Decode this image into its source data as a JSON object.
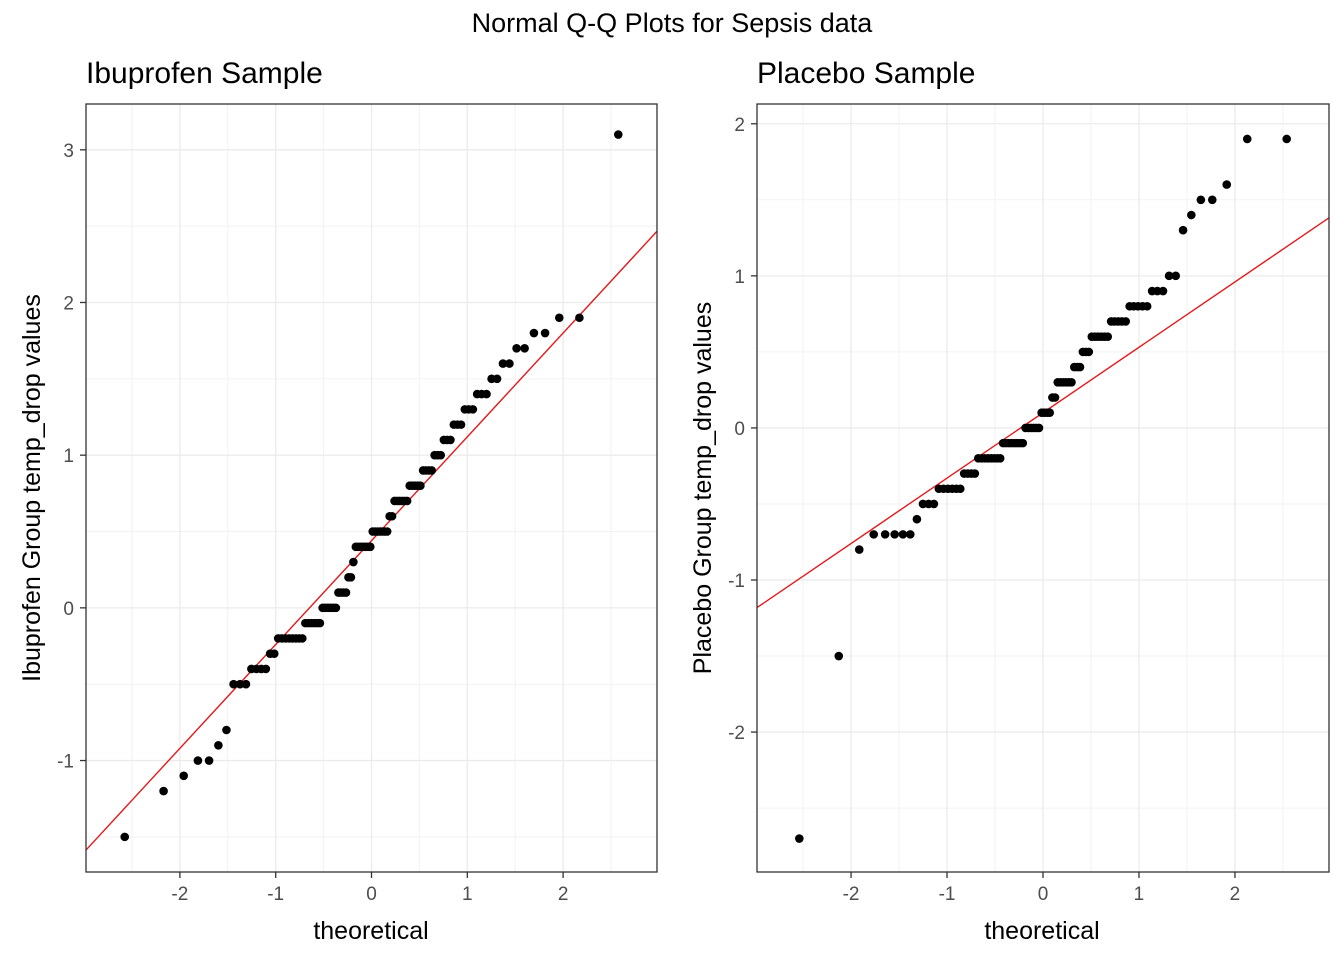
{
  "figure_title": "Normal Q-Q Plots for Sepsis data",
  "chart_data": [
    {
      "type": "scatter",
      "title": "Ibuprofen Sample",
      "xlabel": "theoretical",
      "ylabel": "Ibuprofen Group temp_drop values",
      "xlim": [
        -2.98,
        2.98
      ],
      "ylim": [
        -1.73,
        3.3
      ],
      "x_ticks": [
        "-2",
        "-1",
        "0",
        "1",
        "2"
      ],
      "x_tick_values": [
        -2,
        -1,
        0,
        1,
        2
      ],
      "y_ticks": [
        "-1",
        "0",
        "1",
        "2",
        "3"
      ],
      "y_tick_values": [
        -1,
        0,
        1,
        2,
        3
      ],
      "grid": true,
      "reference_line": {
        "color": "#e31a1c",
        "intercept": 0.44,
        "slope": 0.68
      },
      "point_color": "#000000",
      "sample_values": [
        -1.5,
        -1.2,
        -1.1,
        -1.0,
        -1.0,
        -0.9,
        -0.8,
        -0.5,
        -0.5,
        -0.5,
        -0.4,
        -0.4,
        -0.4,
        -0.4,
        -0.3,
        -0.3,
        -0.2,
        -0.2,
        -0.2,
        -0.2,
        -0.2,
        -0.2,
        -0.2,
        -0.2,
        -0.1,
        -0.1,
        -0.1,
        -0.1,
        -0.1,
        -0.1,
        0.0,
        0.0,
        0.0,
        0.0,
        0.0,
        0.0,
        0.1,
        0.1,
        0.1,
        0.1,
        0.2,
        0.2,
        0.3,
        0.4,
        0.4,
        0.4,
        0.4,
        0.4,
        0.4,
        0.4,
        0.5,
        0.5,
        0.5,
        0.5,
        0.5,
        0.5,
        0.5,
        0.6,
        0.6,
        0.7,
        0.7,
        0.7,
        0.7,
        0.7,
        0.7,
        0.8,
        0.8,
        0.8,
        0.8,
        0.8,
        0.9,
        0.9,
        0.9,
        0.9,
        1.0,
        1.0,
        1.0,
        1.1,
        1.1,
        1.1,
        1.2,
        1.2,
        1.2,
        1.3,
        1.3,
        1.3,
        1.4,
        1.4,
        1.4,
        1.5,
        1.5,
        1.6,
        1.6,
        1.7,
        1.7,
        1.8,
        1.8,
        1.9,
        1.9,
        3.1
      ]
    },
    {
      "type": "scatter",
      "title": "Placebo Sample",
      "xlabel": "theoretical",
      "ylabel": "Placebo Group temp_drop values",
      "xlim": [
        -2.98,
        2.98
      ],
      "ylim": [
        -2.92,
        2.13
      ],
      "x_ticks": [
        "-2",
        "-1",
        "0",
        "1",
        "2"
      ],
      "x_tick_values": [
        -2,
        -1,
        0,
        1,
        2
      ],
      "y_ticks": [
        "-2",
        "-1",
        "0",
        "1",
        "2"
      ],
      "y_tick_values": [
        -2,
        -1,
        0,
        1,
        2
      ],
      "grid": true,
      "reference_line": {
        "color": "#e31a1c",
        "intercept": 0.1,
        "slope": 0.43
      },
      "point_color": "#000000",
      "sample_values": [
        -2.7,
        -1.5,
        -0.8,
        -0.7,
        -0.7,
        -0.7,
        -0.7,
        -0.7,
        -0.6,
        -0.5,
        -0.5,
        -0.5,
        -0.4,
        -0.4,
        -0.4,
        -0.4,
        -0.4,
        -0.4,
        -0.3,
        -0.3,
        -0.3,
        -0.3,
        -0.2,
        -0.2,
        -0.2,
        -0.2,
        -0.2,
        -0.2,
        -0.2,
        -0.2,
        -0.1,
        -0.1,
        -0.1,
        -0.1,
        -0.1,
        -0.1,
        -0.1,
        -0.1,
        0.0,
        0.0,
        0.0,
        0.0,
        0.0,
        0.0,
        0.1,
        0.1,
        0.1,
        0.1,
        0.2,
        0.2,
        0.3,
        0.3,
        0.3,
        0.3,
        0.3,
        0.3,
        0.4,
        0.4,
        0.4,
        0.5,
        0.5,
        0.5,
        0.6,
        0.6,
        0.6,
        0.6,
        0.6,
        0.6,
        0.7,
        0.7,
        0.7,
        0.7,
        0.7,
        0.8,
        0.8,
        0.8,
        0.8,
        0.8,
        0.9,
        0.9,
        0.9,
        1.0,
        1.0,
        1.3,
        1.4,
        1.5,
        1.5,
        1.6,
        1.9,
        1.9
      ]
    }
  ]
}
